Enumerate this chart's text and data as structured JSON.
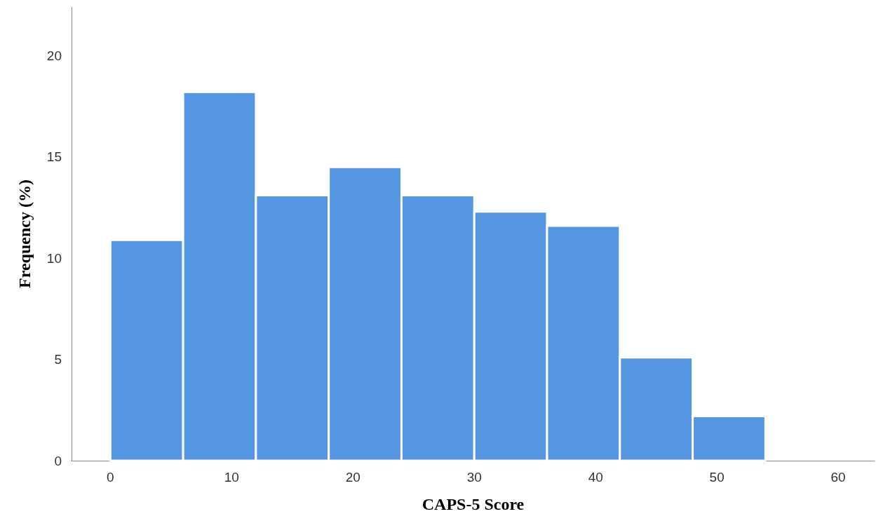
{
  "chart_data": {
    "type": "histogram",
    "xlabel": "CAPS-5 Score",
    "ylabel": "Frequency (%)",
    "bins": [
      0,
      6,
      12,
      18,
      24,
      30,
      36,
      42,
      48,
      54
    ],
    "values": [
      10.9,
      18.2,
      13.1,
      14.5,
      13.1,
      12.3,
      11.6,
      5.1,
      2.2
    ],
    "color": "#5596e3",
    "xlim": [
      -3.2,
      63
    ],
    "xticks": [
      0,
      10,
      20,
      30,
      40,
      50,
      60
    ],
    "ylim": [
      0,
      22.4
    ],
    "yticks": [
      0,
      5,
      10,
      15,
      20
    ],
    "grid": false
  }
}
